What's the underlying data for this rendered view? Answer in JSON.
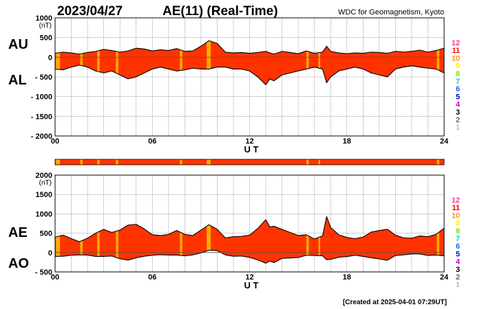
{
  "header": {
    "date": "2023/04/27",
    "index_title": "AE(11) (Real-Time)",
    "source": "WDC for Geomagnetism, Kyoto"
  },
  "footer": {
    "created": "[Created at 2025-04-01 07:29UT]"
  },
  "colors": {
    "plot_fill": "#ff3300",
    "gap_fill": "#ffaa00",
    "trace": "#000000",
    "grid": "#b0b0b0",
    "legend": [
      "#ff3399",
      "#ff0000",
      "#ff9900",
      "#ffee00",
      "#88dd00",
      "#00cccc",
      "#0066ff",
      "#0000cc",
      "#cc00cc",
      "#000000",
      "#666666",
      "#bbbbbb"
    ]
  },
  "chart_data": [
    {
      "type": "area",
      "series_labels": [
        "AU",
        "AL"
      ],
      "xlabel": "U T",
      "ylabel_unit": "(nT)",
      "xlim": [
        0,
        24
      ],
      "ylim": [
        -2000,
        1000
      ],
      "x_ticks": [
        "00",
        "06",
        "12",
        "18",
        "24"
      ],
      "y_ticks": [
        "1000",
        "500",
        "0",
        "- 500",
        "- 1000",
        "- 1500",
        "- 2000"
      ],
      "y_tick_values": [
        1000,
        500,
        0,
        -500,
        -1000,
        -1500,
        -2000
      ],
      "station_count_legend": [
        "12",
        "11",
        "10",
        "9",
        "8",
        "7",
        "6",
        "5",
        "4",
        "3",
        "2",
        "1"
      ],
      "x": [
        0,
        0.5,
        1,
        1.5,
        2,
        2.5,
        3,
        3.5,
        4,
        4.5,
        5,
        5.5,
        6,
        6.5,
        7,
        7.5,
        8,
        8.5,
        9,
        9.5,
        10,
        10.5,
        11,
        11.5,
        12,
        12.5,
        13,
        13.25,
        13.5,
        14,
        14.5,
        15,
        15.5,
        16,
        16.5,
        16.75,
        17,
        17.5,
        18,
        18.5,
        19,
        19.5,
        20,
        20.5,
        21,
        21.5,
        22,
        22.5,
        23,
        23.5,
        24
      ],
      "series": [
        {
          "name": "AU",
          "values": [
            100,
            130,
            110,
            80,
            120,
            150,
            200,
            170,
            130,
            160,
            230,
            210,
            160,
            190,
            170,
            220,
            150,
            160,
            280,
            420,
            350,
            130,
            110,
            120,
            100,
            120,
            150,
            110,
            80,
            150,
            120,
            90,
            160,
            100,
            130,
            280,
            150,
            110,
            90,
            110,
            100,
            130,
            120,
            100,
            150,
            130,
            150,
            180,
            130,
            170,
            230
          ]
        },
        {
          "name": "AL",
          "values": [
            -300,
            -320,
            -250,
            -200,
            -250,
            -350,
            -400,
            -350,
            -450,
            -550,
            -500,
            -400,
            -300,
            -250,
            -300,
            -350,
            -320,
            -280,
            -300,
            -300,
            -250,
            -250,
            -300,
            -300,
            -350,
            -500,
            -700,
            -550,
            -600,
            -450,
            -400,
            -350,
            -300,
            -250,
            -300,
            -650,
            -500,
            -350,
            -300,
            -250,
            -300,
            -400,
            -450,
            -500,
            -300,
            -250,
            -220,
            -250,
            -280,
            -300,
            -400
          ]
        }
      ],
      "availability_gaps": [
        [
          0.05,
          0.3
        ],
        [
          1.55,
          1.7
        ],
        [
          2.6,
          2.75
        ],
        [
          3.75,
          3.9
        ],
        [
          7.7,
          7.85
        ],
        [
          9.35,
          9.6
        ],
        [
          15.5,
          15.65
        ],
        [
          16.25,
          16.35
        ],
        [
          23.55,
          23.7
        ]
      ]
    },
    {
      "type": "area",
      "series_labels": [
        "AE",
        "AO"
      ],
      "xlabel": "U T",
      "ylabel_unit": "(nT)",
      "xlim": [
        0,
        24
      ],
      "ylim": [
        -500,
        2000
      ],
      "x_ticks": [
        "00",
        "06",
        "12",
        "18",
        "24"
      ],
      "y_ticks": [
        "2000",
        "1500",
        "1000",
        "500",
        "0",
        "- 500"
      ],
      "y_tick_values": [
        2000,
        1500,
        1000,
        500,
        0,
        -500
      ],
      "station_count_legend": [
        "12",
        "11",
        "10",
        "9",
        "8",
        "7",
        "6",
        "5",
        "4",
        "3",
        "2",
        "1"
      ],
      "x": [
        0,
        0.5,
        1,
        1.5,
        2,
        2.5,
        3,
        3.5,
        4,
        4.5,
        5,
        5.5,
        6,
        6.5,
        7,
        7.5,
        8,
        8.5,
        9,
        9.5,
        10,
        10.5,
        11,
        11.5,
        12,
        12.5,
        13,
        13.25,
        13.5,
        14,
        14.5,
        15,
        15.5,
        16,
        16.5,
        16.75,
        17,
        17.5,
        18,
        18.5,
        19,
        19.5,
        20,
        20.5,
        21,
        21.5,
        22,
        22.5,
        23,
        23.5,
        24
      ],
      "series": [
        {
          "name": "AE",
          "values": [
            400,
            450,
            360,
            280,
            370,
            500,
            600,
            520,
            580,
            710,
            730,
            610,
            460,
            440,
            470,
            570,
            470,
            440,
            580,
            720,
            600,
            380,
            410,
            420,
            450,
            620,
            850,
            660,
            680,
            600,
            520,
            440,
            460,
            350,
            430,
            930,
            650,
            460,
            390,
            360,
            400,
            530,
            570,
            600,
            450,
            380,
            370,
            430,
            410,
            470,
            630
          ]
        },
        {
          "name": "AO",
          "values": [
            -100,
            -95,
            -70,
            -60,
            -65,
            -100,
            -100,
            -90,
            -160,
            -195,
            -135,
            -95,
            -70,
            -55,
            -65,
            -65,
            -85,
            -60,
            -10,
            60,
            50,
            -60,
            -95,
            -90,
            -125,
            -190,
            -275,
            -220,
            -260,
            -150,
            -140,
            -130,
            -70,
            -75,
            -85,
            -185,
            -175,
            -120,
            -105,
            -70,
            -100,
            -135,
            -165,
            -200,
            -75,
            -60,
            -35,
            -35,
            -75,
            -65,
            -85
          ]
        }
      ],
      "availability_gaps": [
        [
          0.05,
          0.3
        ],
        [
          1.55,
          1.7
        ],
        [
          2.6,
          2.75
        ],
        [
          3.75,
          3.9
        ],
        [
          7.7,
          7.85
        ],
        [
          9.35,
          9.6
        ],
        [
          15.5,
          15.65
        ],
        [
          16.25,
          16.35
        ],
        [
          23.55,
          23.7
        ]
      ]
    }
  ]
}
